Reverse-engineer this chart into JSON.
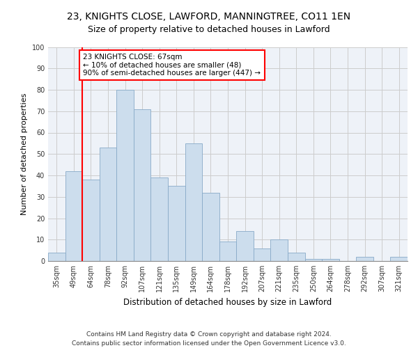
{
  "title_line1": "23, KNIGHTS CLOSE, LAWFORD, MANNINGTREE, CO11 1EN",
  "title_line2": "Size of property relative to detached houses in Lawford",
  "xlabel": "Distribution of detached houses by size in Lawford",
  "ylabel": "Number of detached properties",
  "categories": [
    "35sqm",
    "49sqm",
    "64sqm",
    "78sqm",
    "92sqm",
    "107sqm",
    "121sqm",
    "135sqm",
    "149sqm",
    "164sqm",
    "178sqm",
    "192sqm",
    "207sqm",
    "221sqm",
    "235sqm",
    "250sqm",
    "264sqm",
    "278sqm",
    "292sqm",
    "307sqm",
    "321sqm"
  ],
  "values": [
    4,
    42,
    38,
    53,
    80,
    71,
    39,
    35,
    55,
    32,
    9,
    14,
    6,
    10,
    4,
    1,
    1,
    0,
    2,
    0,
    2
  ],
  "bar_color": "#ccdded",
  "bar_edge_color": "#88aac8",
  "annotation_text": "23 KNIGHTS CLOSE: 67sqm\n← 10% of detached houses are smaller (48)\n90% of semi-detached houses are larger (447) →",
  "annotation_box_color": "white",
  "annotation_box_edge_color": "red",
  "red_line_color": "red",
  "grid_color": "#cccccc",
  "background_color": "#eef2f8",
  "footer_line1": "Contains HM Land Registry data © Crown copyright and database right 2024.",
  "footer_line2": "Contains public sector information licensed under the Open Government Licence v3.0.",
  "ylim": [
    0,
    100
  ],
  "title_fontsize": 10,
  "subtitle_fontsize": 9,
  "tick_fontsize": 7,
  "ylabel_fontsize": 8,
  "xlabel_fontsize": 8.5,
  "footer_fontsize": 6.5,
  "annot_fontsize": 7.5
}
